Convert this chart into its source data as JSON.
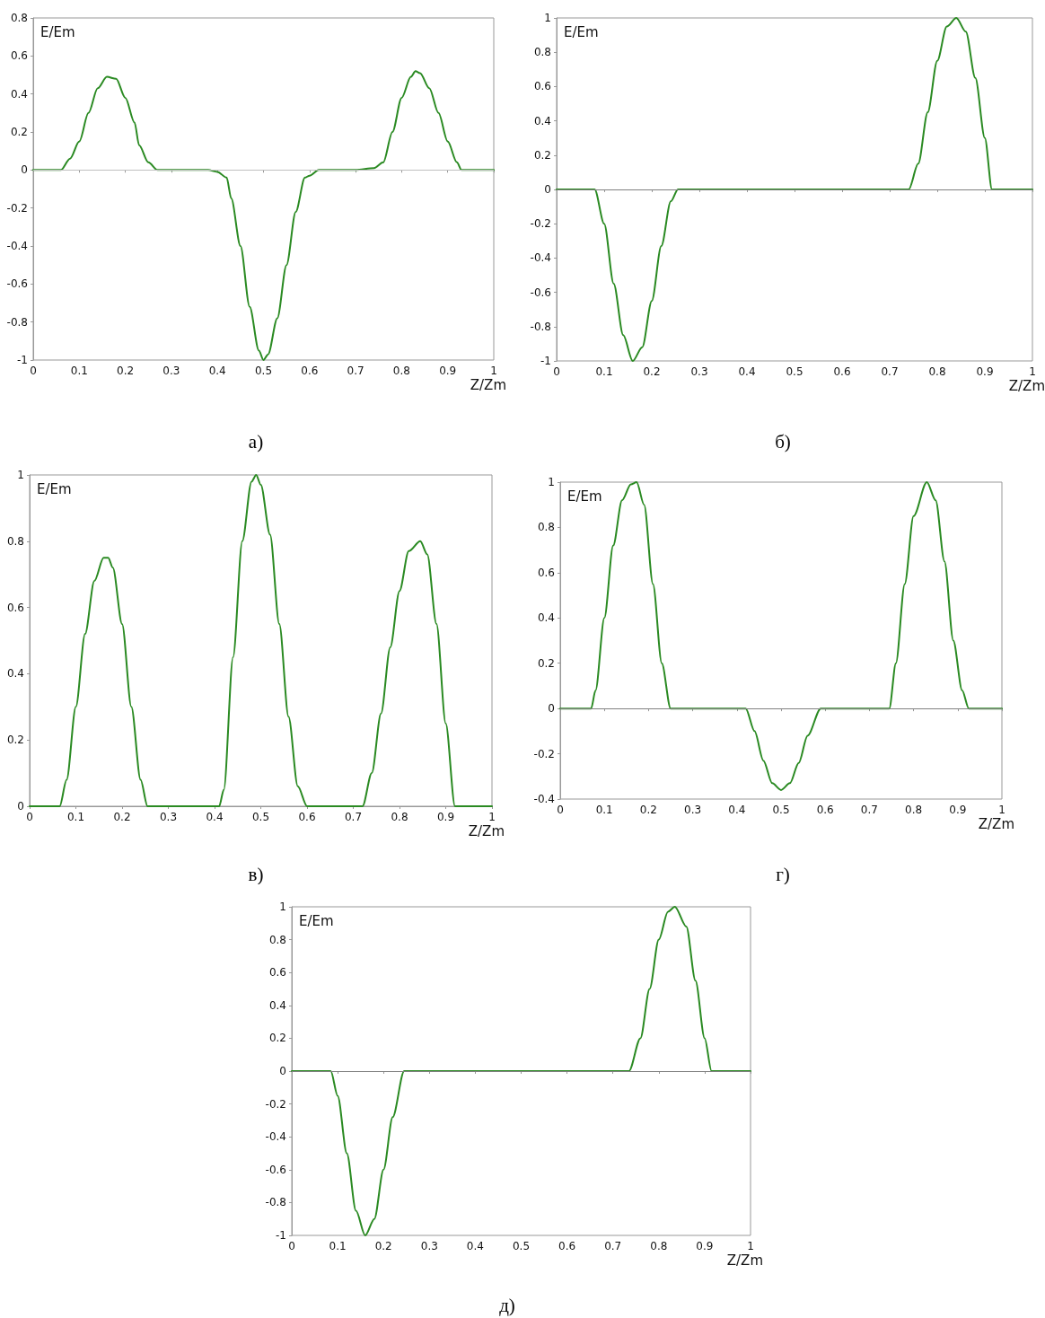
{
  "chart_data": [
    {
      "type": "line",
      "xlabel": "Z/Zm",
      "ylabel": "E/Em",
      "annotations": [
        "а)"
      ],
      "xlim": [
        0,
        1
      ],
      "xticks": [
        0,
        0.1,
        0.2,
        0.3,
        0.4,
        0.5,
        0.6,
        0.7,
        0.8,
        0.9,
        1
      ],
      "ylim": [
        -1,
        0.8
      ],
      "yticks": [
        -1,
        -0.8,
        -0.6,
        -0.4,
        -0.2,
        0,
        0.2,
        0.4,
        0.6,
        0.8
      ],
      "grid": false,
      "marker": "none",
      "line_style": "solid",
      "ref_lines": [
        {
          "axis": "y",
          "value": 0,
          "color": "#c0c0c0"
        }
      ],
      "series": [
        {
          "color": "#2a8a22",
          "x": [
            0,
            0.05,
            0.06,
            0.08,
            0.1,
            0.12,
            0.14,
            0.16,
            0.18,
            0.2,
            0.22,
            0.23,
            0.25,
            0.27,
            0.3,
            0.38,
            0.4,
            0.42,
            0.43,
            0.45,
            0.47,
            0.49,
            0.5,
            0.51,
            0.53,
            0.55,
            0.57,
            0.59,
            0.6,
            0.62,
            0.7,
            0.74,
            0.76,
            0.78,
            0.8,
            0.82,
            0.83,
            0.84,
            0.86,
            0.88,
            0.9,
            0.92,
            0.93,
            1
          ],
          "values": [
            0,
            0,
            0,
            0.06,
            0.15,
            0.3,
            0.43,
            0.49,
            0.48,
            0.38,
            0.25,
            0.13,
            0.04,
            0,
            0,
            0,
            -0.01,
            -0.04,
            -0.15,
            -0.4,
            -0.72,
            -0.95,
            -1,
            -0.97,
            -0.78,
            -0.5,
            -0.22,
            -0.04,
            -0.03,
            0,
            0,
            0.01,
            0.04,
            0.2,
            0.38,
            0.49,
            0.52,
            0.51,
            0.43,
            0.3,
            0.15,
            0.04,
            0,
            0
          ]
        }
      ]
    },
    {
      "type": "line",
      "xlabel": "Z/Zm",
      "ylabel": "E/Em",
      "annotations": [
        "б)"
      ],
      "xlim": [
        0,
        1
      ],
      "xticks": [
        0,
        0.1,
        0.2,
        0.3,
        0.4,
        0.5,
        0.6,
        0.7,
        0.8,
        0.9,
        1
      ],
      "ylim": [
        -1,
        1
      ],
      "yticks": [
        -1,
        -0.8,
        -0.6,
        -0.4,
        -0.2,
        0,
        0.2,
        0.4,
        0.6,
        0.8,
        1
      ],
      "grid": false,
      "marker": "none",
      "line_style": "solid",
      "ref_lines": [
        {
          "axis": "y",
          "value": 0,
          "color": "#808080"
        }
      ],
      "series": [
        {
          "color": "#2a8a22",
          "x": [
            0,
            0.08,
            0.1,
            0.12,
            0.14,
            0.16,
            0.18,
            0.2,
            0.22,
            0.24,
            0.255,
            0.74,
            0.76,
            0.78,
            0.8,
            0.82,
            0.84,
            0.86,
            0.88,
            0.9,
            0.915,
            1
          ],
          "values": [
            0,
            0,
            -0.2,
            -0.55,
            -0.85,
            -1,
            -0.92,
            -0.65,
            -0.33,
            -0.07,
            0,
            0,
            0.15,
            0.45,
            0.75,
            0.95,
            1,
            0.92,
            0.65,
            0.3,
            0,
            0
          ]
        }
      ]
    },
    {
      "type": "line",
      "xlabel": "Z/Zm",
      "ylabel": "E/Em",
      "annotations": [
        "в)"
      ],
      "xlim": [
        0,
        1
      ],
      "xticks": [
        0,
        0.1,
        0.2,
        0.3,
        0.4,
        0.5,
        0.6,
        0.7,
        0.8,
        0.9,
        1
      ],
      "ylim": [
        0,
        1
      ],
      "yticks": [
        0,
        0.2,
        0.4,
        0.6,
        0.8,
        1
      ],
      "grid": false,
      "marker": "none",
      "line_style": "solid",
      "series": [
        {
          "color": "#2a8a22",
          "x": [
            0,
            0.065,
            0.08,
            0.1,
            0.12,
            0.14,
            0.16,
            0.17,
            0.18,
            0.2,
            0.22,
            0.24,
            0.255,
            0.41,
            0.42,
            0.44,
            0.46,
            0.48,
            0.49,
            0.5,
            0.52,
            0.54,
            0.56,
            0.58,
            0.6,
            0.72,
            0.74,
            0.76,
            0.78,
            0.8,
            0.82,
            0.845,
            0.86,
            0.88,
            0.9,
            0.92,
            1
          ],
          "values": [
            0,
            0,
            0.08,
            0.3,
            0.52,
            0.68,
            0.75,
            0.75,
            0.72,
            0.55,
            0.3,
            0.08,
            0,
            0,
            0.05,
            0.45,
            0.8,
            0.98,
            1,
            0.97,
            0.82,
            0.55,
            0.27,
            0.06,
            0,
            0,
            0.1,
            0.28,
            0.48,
            0.65,
            0.77,
            0.8,
            0.76,
            0.55,
            0.25,
            0,
            0
          ]
        }
      ]
    },
    {
      "type": "line",
      "xlabel": "Z/Zm",
      "ylabel": "E/Em",
      "annotations": [
        "г)"
      ],
      "xlim": [
        0,
        1
      ],
      "xticks": [
        0,
        0.1,
        0.2,
        0.3,
        0.4,
        0.5,
        0.6,
        0.7,
        0.8,
        0.9,
        1
      ],
      "ylim": [
        -0.4,
        1
      ],
      "yticks": [
        -0.4,
        -0.2,
        0,
        0.2,
        0.4,
        0.6,
        0.8,
        1
      ],
      "grid": false,
      "marker": "none",
      "line_style": "solid",
      "ref_lines": [
        {
          "axis": "y",
          "value": 0,
          "color": "#808080"
        }
      ],
      "series": [
        {
          "color": "#2a8a22",
          "x": [
            0,
            0.07,
            0.08,
            0.1,
            0.12,
            0.14,
            0.16,
            0.173,
            0.19,
            0.21,
            0.23,
            0.25,
            0.42,
            0.44,
            0.46,
            0.48,
            0.5,
            0.52,
            0.54,
            0.56,
            0.59,
            0.745,
            0.76,
            0.78,
            0.8,
            0.83,
            0.85,
            0.87,
            0.89,
            0.91,
            0.925,
            1
          ],
          "values": [
            0,
            0,
            0.08,
            0.4,
            0.72,
            0.92,
            0.99,
            1,
            0.9,
            0.55,
            0.2,
            0,
            0,
            -0.1,
            -0.23,
            -0.33,
            -0.36,
            -0.33,
            -0.24,
            -0.12,
            0,
            0,
            0.2,
            0.55,
            0.85,
            1,
            0.92,
            0.65,
            0.3,
            0.08,
            0,
            0
          ]
        }
      ]
    },
    {
      "type": "line",
      "xlabel": "Z/Zm",
      "ylabel": "E/Em",
      "annotations": [
        "д)"
      ],
      "xlim": [
        0,
        1
      ],
      "xticks": [
        0,
        0.1,
        0.2,
        0.3,
        0.4,
        0.5,
        0.6,
        0.7,
        0.8,
        0.9,
        1
      ],
      "ylim": [
        -1,
        1
      ],
      "yticks": [
        -1,
        -0.8,
        -0.6,
        -0.4,
        -0.2,
        0,
        0.2,
        0.4,
        0.6,
        0.8,
        1
      ],
      "grid": false,
      "marker": "none",
      "line_style": "solid",
      "ref_lines": [
        {
          "axis": "y",
          "value": 0,
          "color": "#808080"
        }
      ],
      "series": [
        {
          "color": "#2a8a22",
          "x": [
            0,
            0.085,
            0.1,
            0.12,
            0.14,
            0.16,
            0.18,
            0.2,
            0.22,
            0.245,
            0.735,
            0.76,
            0.78,
            0.8,
            0.82,
            0.835,
            0.86,
            0.88,
            0.9,
            0.915,
            1
          ],
          "values": [
            0,
            0,
            -0.15,
            -0.5,
            -0.85,
            -1,
            -0.9,
            -0.6,
            -0.28,
            0,
            0,
            0.2,
            0.5,
            0.8,
            0.97,
            1,
            0.88,
            0.55,
            0.2,
            0,
            0
          ]
        }
      ]
    }
  ]
}
